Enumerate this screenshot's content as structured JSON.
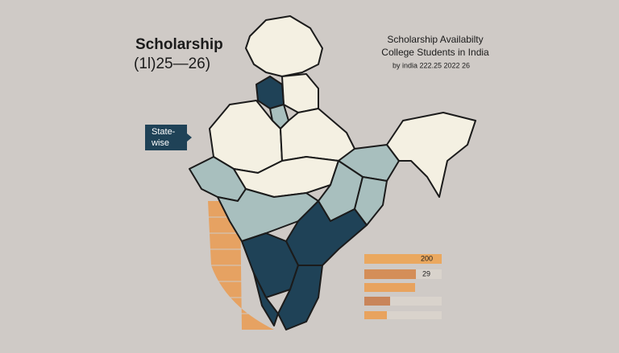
{
  "header": {
    "title": "Scholarship",
    "subtitle": "(1l)25—26)"
  },
  "badge": {
    "lines": [
      "State-",
      "wise"
    ]
  },
  "legend": {
    "title": "Scholarship Availabilty",
    "subtitle": "College Students in India",
    "note": "by india 222.25 2022 26"
  },
  "bars": [
    {
      "label": "200"
    },
    {
      "label": "29"
    }
  ]
}
